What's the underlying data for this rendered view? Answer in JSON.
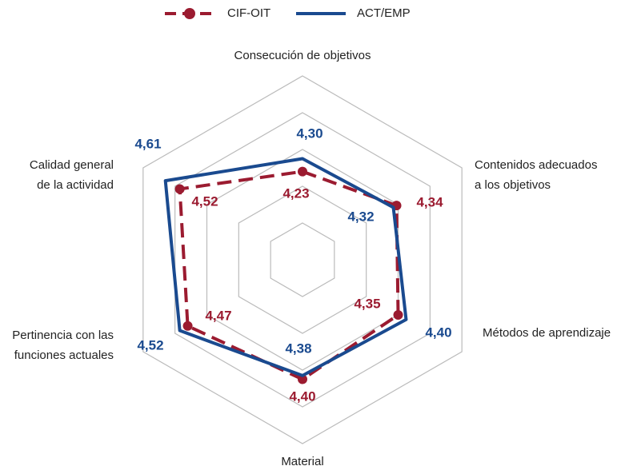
{
  "chart_data": {
    "type": "radar",
    "categories": [
      [
        "Consecución de objetivos"
      ],
      [
        "Contenidos adecuados",
        "a los objetivos"
      ],
      [
        "Métodos de aprendizaje"
      ],
      [
        "Material"
      ],
      [
        "Pertinencia con las",
        "funciones actuales"
      ],
      [
        "Calidad general",
        "de la actividad"
      ]
    ],
    "series": [
      {
        "name": "CIF-OIT",
        "color": "#9b1b30",
        "style": "dashed",
        "values": [
          4.23,
          4.34,
          4.35,
          4.4,
          4.47,
          4.52
        ],
        "value_labels": [
          "4,23",
          "4,34",
          "4,35",
          "4,40",
          "4,47",
          "4,52"
        ]
      },
      {
        "name": "ACT/EMP",
        "color": "#1a4a8f",
        "style": "solid",
        "values": [
          4.3,
          4.32,
          4.4,
          4.38,
          4.52,
          4.61
        ],
        "value_labels": [
          "4,30",
          "4,32",
          "4,40",
          "4,38",
          "4,52",
          "4,61"
        ]
      }
    ],
    "rlim": [
      3.75,
      4.75
    ],
    "rticks": [
      3.95,
      4.15,
      4.35,
      4.55,
      4.75
    ],
    "grid": true,
    "legend": "top"
  }
}
